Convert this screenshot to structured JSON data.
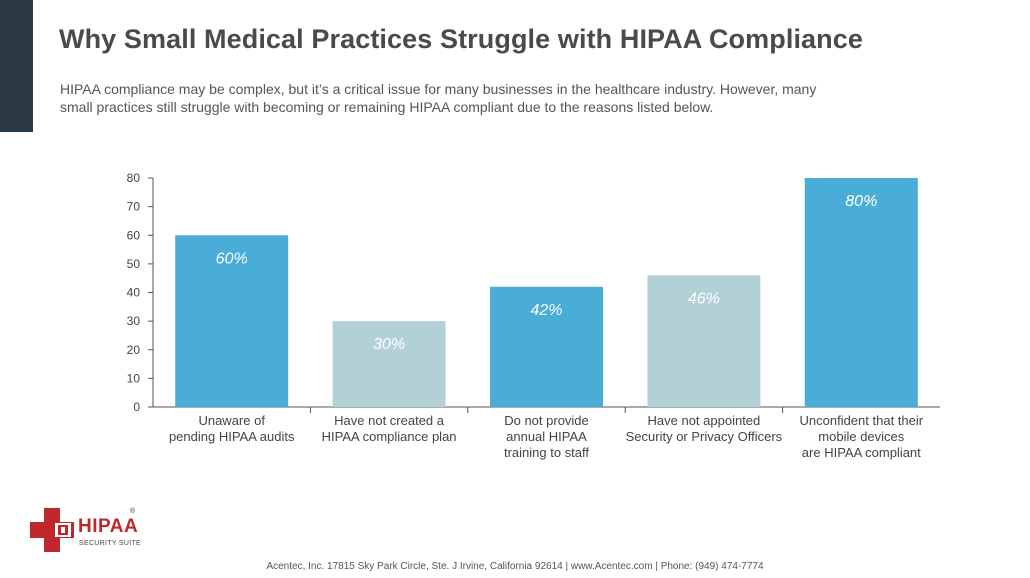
{
  "page": {
    "title": "Why Small Medical Practices Struggle with HIPAA Compliance",
    "subtitle_lines": [
      "HIPAA compliance may be complex, but it’s a critical issue for many businesses in the healthcare industry. However, many",
      "small practices still struggle with becoming or remaining HIPAA compliant due to the reasons listed below."
    ]
  },
  "colors": {
    "accent_bar": "#2c3a45",
    "bar_dark": "#4aadd8",
    "bar_light": "#b2d1d7",
    "axis": "#555555",
    "brand_red": "#c0272d"
  },
  "chart_data": {
    "type": "bar",
    "categories": [
      [
        "Unaware of",
        "pending HIPAA audits"
      ],
      [
        "Have not created a",
        "HIPAA compliance plan"
      ],
      [
        "Do not provide",
        "annual HIPAA",
        "training to staff"
      ],
      [
        "Have not appointed",
        "Security or Privacy Officers"
      ],
      [
        "Unconfident that their",
        "mobile devices",
        "are HIPAA compliant"
      ]
    ],
    "values": [
      60,
      30,
      42,
      46,
      80
    ],
    "data_labels": [
      "60%",
      "30%",
      "42%",
      "46%",
      "80%"
    ],
    "bar_color_keys": [
      "bar_dark",
      "bar_light",
      "bar_dark",
      "bar_light",
      "bar_dark"
    ],
    "yticks": [
      0,
      10,
      20,
      30,
      40,
      50,
      60,
      70,
      80
    ],
    "ylim": [
      0,
      80
    ],
    "grid": false,
    "legend": "none"
  },
  "logo": {
    "word": "HIPAA",
    "sub": "SECURITY SUITE",
    "reg": "®",
    "icon": "red-cross-lock-icon"
  },
  "footer": {
    "text": "Acentec, Inc. 17815 Sky Park Circle, Ste. J Irvine, California 92614 | www.Acentec.com | Phone: (949) 474-7774"
  }
}
